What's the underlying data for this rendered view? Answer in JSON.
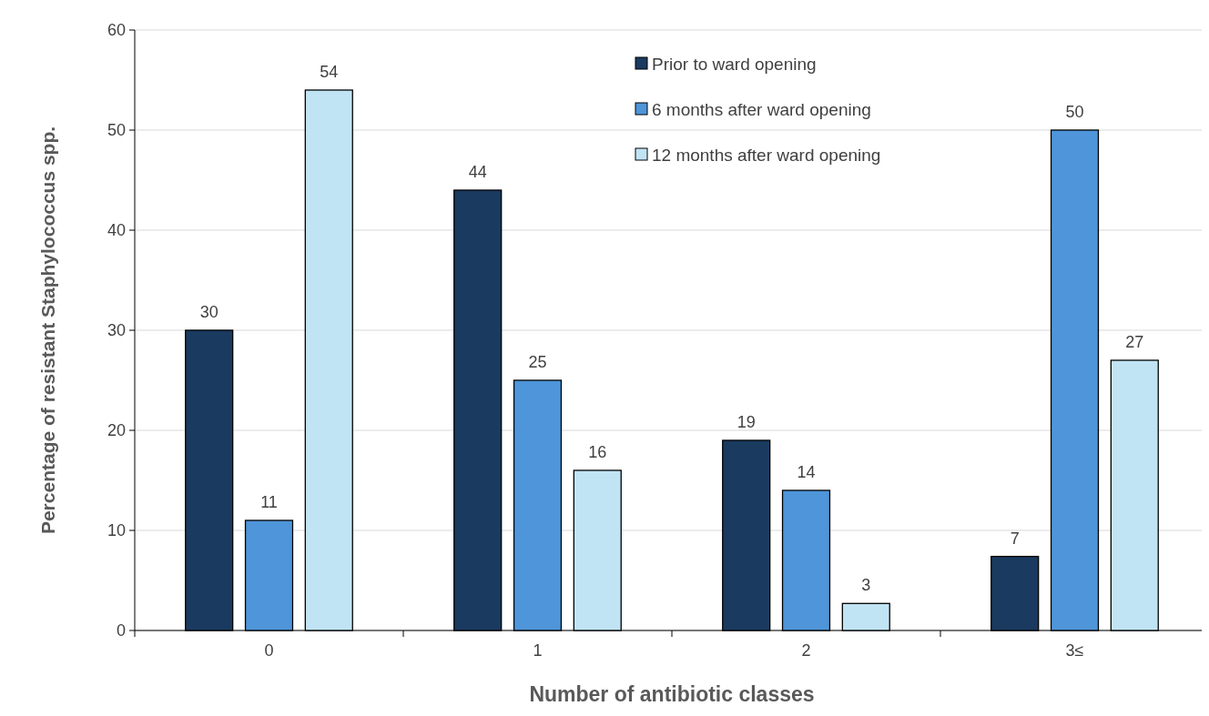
{
  "chart_data": {
    "type": "bar",
    "xlabel": "Number of antibiotic classes",
    "ylabel": "Percentage of resistant Staphylococcus spp.",
    "categories": [
      "0",
      "1",
      "2",
      "3≤"
    ],
    "series": [
      {
        "name": "Prior to ward opening",
        "color": "#1a3a5f",
        "values": [
          30,
          44,
          19,
          7.4
        ],
        "value_labels": [
          "30",
          "44",
          "19",
          "7"
        ]
      },
      {
        "name": "6 months after ward opening",
        "color": "#4e95d9",
        "values": [
          11,
          25,
          14,
          50
        ],
        "value_labels": [
          "11",
          "25",
          "14",
          "50"
        ]
      },
      {
        "name": "12 months after ward opening",
        "color": "#c1e4f5",
        "values": [
          54,
          16,
          2.7,
          27
        ],
        "value_labels": [
          "54",
          "16",
          "3",
          "27"
        ]
      }
    ],
    "ylim": [
      0,
      60
    ],
    "yticks": [
      0,
      10,
      20,
      30,
      40,
      50,
      60
    ],
    "grid": "y",
    "legend": "top"
  }
}
